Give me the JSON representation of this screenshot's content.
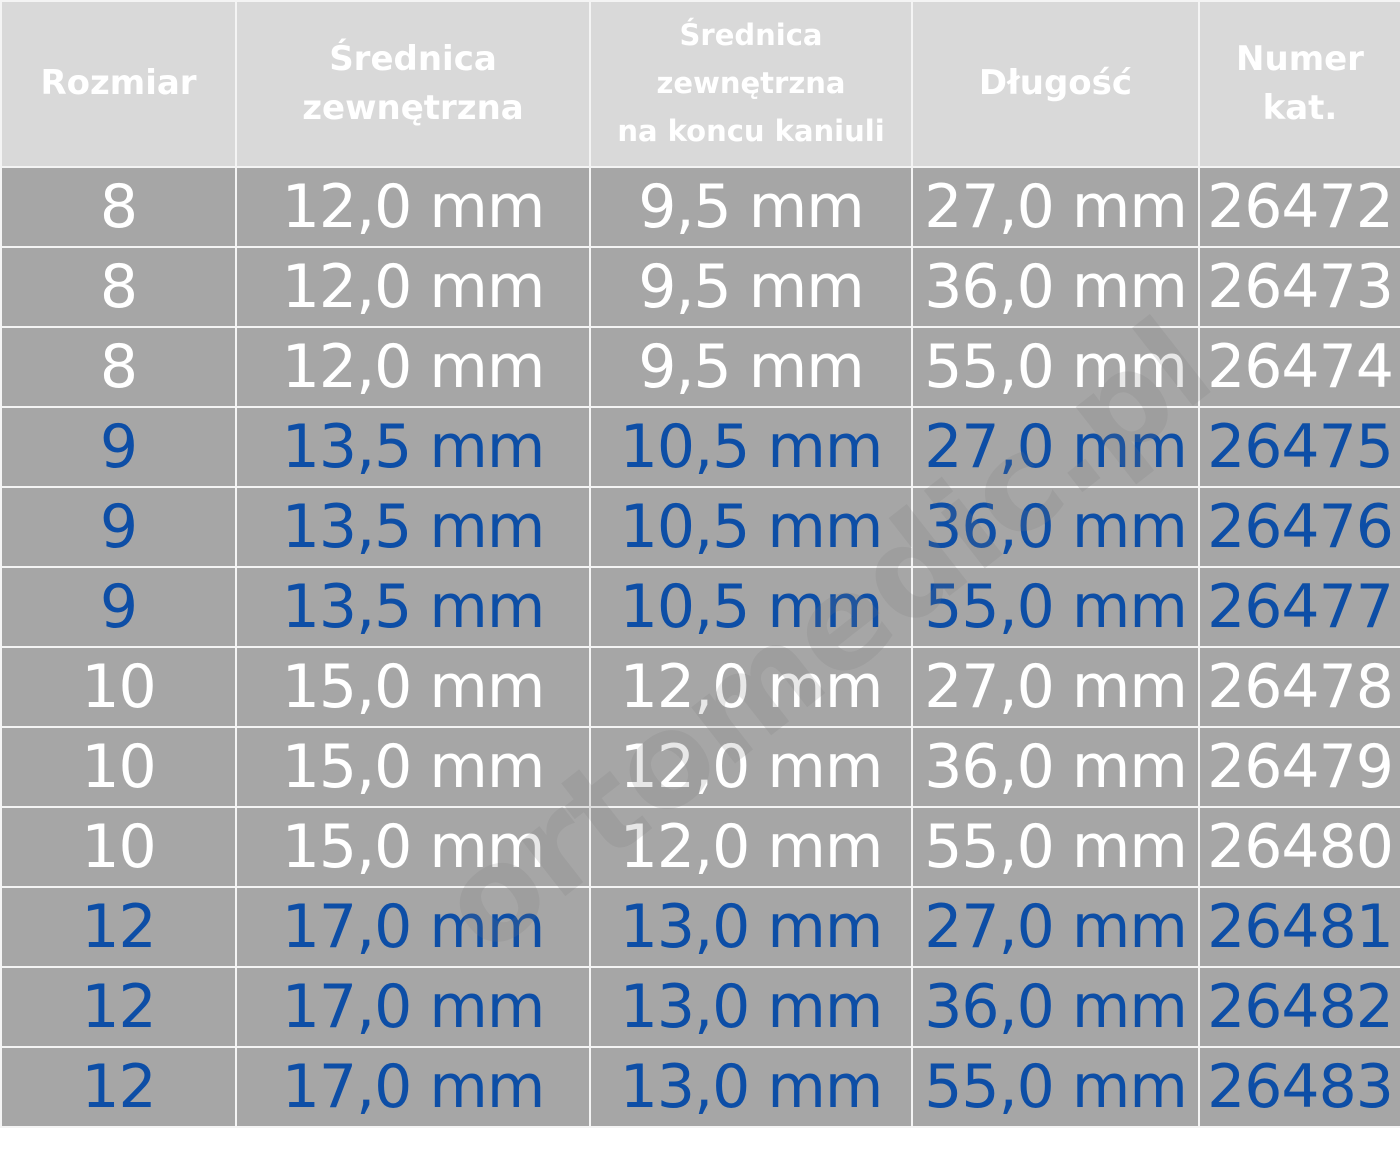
{
  "headers": [
    "Rozmiar",
    "Średnica zewnętrzna",
    "Średnica zewnętrzna na koncu kaniuli",
    "Długość",
    "Numer kat."
  ],
  "header_lines": [
    [
      "Rozmiar"
    ],
    [
      "Średnica",
      "zewnętrzna"
    ],
    [
      "Średnica",
      "zewnętrzna",
      "na koncu kaniuli"
    ],
    [
      "Długość"
    ],
    [
      "Numer",
      "kat."
    ]
  ],
  "rows": [
    {
      "size": "8",
      "outer": "12,0 mm",
      "tip": "9,5 mm",
      "length": "27,0 mm",
      "cat": "26472",
      "color": "white"
    },
    {
      "size": "8",
      "outer": "12,0 mm",
      "tip": "9,5 mm",
      "length": "36,0 mm",
      "cat": "26473",
      "color": "white"
    },
    {
      "size": "8",
      "outer": "12,0 mm",
      "tip": "9,5 mm",
      "length": "55,0 mm",
      "cat": "26474",
      "color": "white"
    },
    {
      "size": "9",
      "outer": "13,5 mm",
      "tip": "10,5 mm",
      "length": "27,0 mm",
      "cat": "26475",
      "color": "blue"
    },
    {
      "size": "9",
      "outer": "13,5 mm",
      "tip": "10,5 mm",
      "length": "36,0 mm",
      "cat": "26476",
      "color": "blue"
    },
    {
      "size": "9",
      "outer": "13,5 mm",
      "tip": "10,5 mm",
      "length": "55,0 mm",
      "cat": "26477",
      "color": "blue"
    },
    {
      "size": "10",
      "outer": "15,0 mm",
      "tip": "12,0 mm",
      "length": "27,0 mm",
      "cat": "26478",
      "color": "white"
    },
    {
      "size": "10",
      "outer": "15,0 mm",
      "tip": "12,0 mm",
      "length": "36,0 mm",
      "cat": "26479",
      "color": "white"
    },
    {
      "size": "10",
      "outer": "15,0 mm",
      "tip": "12,0 mm",
      "length": "55,0 mm",
      "cat": "26480",
      "color": "white"
    },
    {
      "size": "12",
      "outer": "17,0 mm",
      "tip": "13,0 mm",
      "length": "27,0 mm",
      "cat": "26481",
      "color": "blue"
    },
    {
      "size": "12",
      "outer": "17,0 mm",
      "tip": "13,0 mm",
      "length": "36,0 mm",
      "cat": "26482",
      "color": "blue"
    },
    {
      "size": "12",
      "outer": "17,0 mm",
      "tip": "13,0 mm",
      "length": "55,0 mm",
      "cat": "26483",
      "color": "blue"
    }
  ],
  "colors": {
    "header_bg": "#d9d9d9",
    "body_bg": "#a6a6a6",
    "text_white": "#ffffff",
    "text_blue": "#0d4ea6"
  },
  "watermark": "ortomedic.pl"
}
